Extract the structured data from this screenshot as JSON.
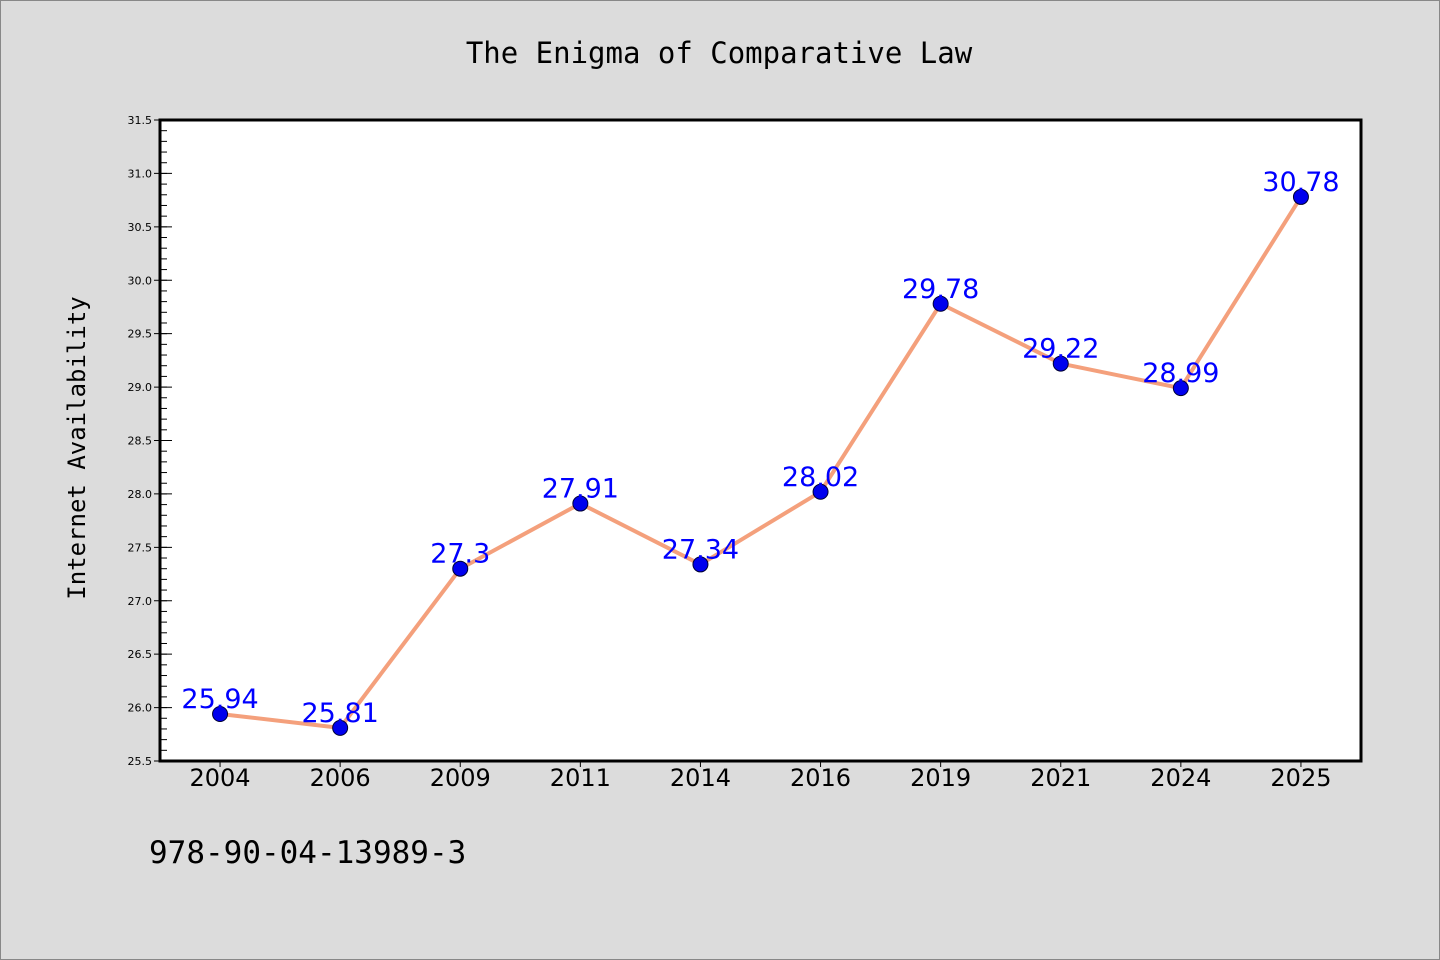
{
  "chart_data": {
    "type": "line",
    "title": "The Enigma of Comparative Law",
    "xlabel": "",
    "ylabel": "Internet Availability",
    "categories": [
      "2004",
      "2006",
      "2009",
      "2011",
      "2014",
      "2016",
      "2019",
      "2021",
      "2024",
      "2025"
    ],
    "values": [
      25.94,
      25.81,
      27.3,
      27.91,
      27.34,
      28.02,
      29.78,
      29.22,
      28.99,
      30.78
    ],
    "data_labels": [
      "25.94",
      "25.81",
      "27.3",
      "27.91",
      "27.34",
      "28.02",
      "29.78",
      "29.22",
      "28.99",
      "30.78"
    ],
    "ylim": [
      25.5,
      31.5
    ],
    "yticks": [
      "25.5",
      "26.0",
      "26.5",
      "27.0",
      "27.5",
      "28.0",
      "28.5",
      "29.0",
      "29.5",
      "30.0",
      "30.5",
      "31.0",
      "31.5"
    ],
    "grid": false,
    "legend": "none",
    "line_color": "#f4a07c",
    "marker_color": "#0000ee",
    "label_color": "#0000ff",
    "plot_background": "#ffffff",
    "figure_background": "#dcdcdc"
  },
  "footer": {
    "isbn": "978-90-04-13989-3"
  }
}
